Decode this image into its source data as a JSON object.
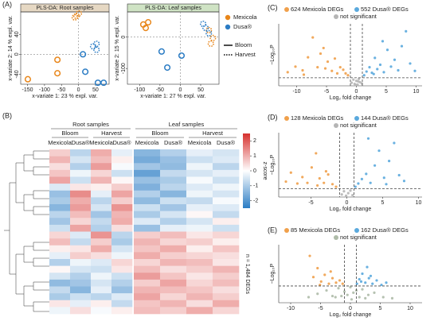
{
  "legend": {
    "cultivars": [
      {
        "name": "Mexicola",
        "color": "#e8861a"
      },
      {
        "name": "Dusa®",
        "color": "#2b7cc4"
      }
    ],
    "stages": [
      {
        "name": "Bloom",
        "dash": "none"
      },
      {
        "name": "Harvest",
        "dash": "1.6 1.4"
      }
    ]
  },
  "chart_data": [
    {
      "type": "scatter",
      "panel_label": "(A)",
      "title": "PLS-DA: Root samples",
      "title_color": "#e6d8c3",
      "xlabel": "x-variate 1: 23 % expl. var.",
      "ylabel": "x-variate 2: 14 % expl. var.",
      "xlim": [
        -170,
        90
      ],
      "ylim": [
        -60,
        85
      ],
      "xticks": [
        -150,
        -100,
        -50,
        0,
        50
      ],
      "yticks": [
        -40,
        0,
        40
      ],
      "zero_lines": true,
      "series": [
        {
          "cultivar": 0,
          "stage": 0,
          "x": [
            -149,
            -62,
            -62
          ],
          "y": [
            -50,
            -11,
            -38
          ]
        },
        {
          "cultivar": 0,
          "stage": 1,
          "x": [
            -6,
            1,
            -11
          ],
          "y": [
            77,
            82,
            74
          ]
        },
        {
          "cultivar": 1,
          "stage": 1,
          "x": [
            53,
            53,
            43
          ],
          "y": [
            21,
            9,
            16
          ]
        },
        {
          "cultivar": 1,
          "stage": 0,
          "x": [
            13,
            20,
            57,
            74
          ],
          "y": [
            0,
            -35,
            -57,
            -57
          ]
        }
      ]
    },
    {
      "type": "scatter",
      "title": "PLS-DA: Leaf samples",
      "title_color": "#cfe3c4",
      "xlabel": "x-variate 1: 27 % expl. var.",
      "ylabel": "x-variate 2: 15 % expl. var.",
      "xlim": [
        -130,
        95
      ],
      "ylim": [
        -150,
        80
      ],
      "xticks": [
        -100,
        -50,
        0,
        50
      ],
      "yticks": [
        -100,
        0
      ],
      "zero_lines": true,
      "series": [
        {
          "cultivar": 0,
          "stage": 0,
          "x": [
            -91,
            -79,
            -85
          ],
          "y": [
            40,
            47,
            29
          ]
        },
        {
          "cultivar": 0,
          "stage": 1,
          "x": [
            70,
            80,
            75
          ],
          "y": [
            22,
            -3,
            -21
          ]
        },
        {
          "cultivar": 1,
          "stage": 1,
          "x": [
            62,
            70,
            56
          ],
          "y": [
            29,
            12,
            42
          ]
        },
        {
          "cultivar": 1,
          "stage": 0,
          "x": [
            -46,
            -32,
            3
          ],
          "y": [
            -46,
            -97,
            -59
          ]
        }
      ]
    },
    {
      "type": "heatmap",
      "panel_label": "(B)",
      "zlabel": "z-score",
      "note": "n = 1,484 DEGs",
      "zlim": [
        -2.5,
        2.5
      ],
      "zticks": [
        2,
        1,
        0,
        -1,
        -2
      ],
      "low_color": "#2b7cc4",
      "mid_color": "#ffffff",
      "high_color": "#d6312e",
      "groups": [
        {
          "name": "Root samples",
          "stages": [
            {
              "name": "Bloom",
              "columns": [
                "Mexicola",
                "Dusa®"
              ]
            },
            {
              "name": "Harvest",
              "columns": [
                "Mexicola",
                "Dusa®"
              ]
            }
          ]
        },
        {
          "name": "Leaf samples",
          "stages": [
            {
              "name": "Bloom",
              "columns": [
                "Mexicola",
                "Dusa®"
              ]
            },
            {
              "name": "Harvest",
              "columns": [
                "Mexicola",
                "Dusa®"
              ]
            }
          ]
        }
      ],
      "values": [
        [
          0.6,
          -0.8,
          1.0,
          -0.3,
          -1.4,
          -0.9,
          -0.3,
          -0.5
        ],
        [
          0.9,
          -0.5,
          0.8,
          0.2,
          -1.6,
          -1.2,
          -0.6,
          -0.4
        ],
        [
          0.4,
          -0.9,
          1.2,
          -0.1,
          -1.1,
          -1.3,
          -0.2,
          -0.8
        ],
        [
          0.7,
          -0.2,
          0.5,
          -0.6,
          -1.8,
          -0.7,
          -0.5,
          -0.3
        ],
        [
          1.1,
          -0.6,
          0.9,
          0.1,
          -1.2,
          -1.0,
          -0.1,
          -0.6
        ],
        [
          -0.4,
          0.3,
          0.2,
          0.6,
          -1.5,
          -0.8,
          -0.4,
          -0.2
        ],
        [
          -1.2,
          1.4,
          -0.3,
          1.1,
          -0.9,
          -1.4,
          -0.2,
          -0.5
        ],
        [
          -1.0,
          1.0,
          -0.8,
          0.6,
          -1.3,
          -0.6,
          -0.7,
          -0.1
        ],
        [
          -1.4,
          1.2,
          -0.5,
          1.3,
          -0.6,
          -1.1,
          -0.3,
          -0.4
        ],
        [
          -0.8,
          0.8,
          -1.1,
          0.9,
          -1.0,
          -0.5,
          0.1,
          -0.7
        ],
        [
          -1.1,
          0.5,
          -0.7,
          1.0,
          -0.4,
          -0.9,
          -0.5,
          0.2
        ],
        [
          -0.6,
          1.1,
          -0.9,
          0.4,
          -1.2,
          -0.3,
          -0.2,
          -0.6
        ],
        [
          0.5,
          -0.4,
          1.3,
          -0.8,
          0.6,
          0.8,
          0.3,
          0.5
        ],
        [
          0.8,
          -0.7,
          0.6,
          -1.0,
          0.9,
          0.5,
          0.6,
          0.2
        ],
        [
          0.2,
          0.3,
          1.0,
          -0.5,
          0.7,
          1.0,
          0.2,
          0.7
        ],
        [
          -0.3,
          0.6,
          0.4,
          -0.2,
          1.0,
          0.6,
          0.5,
          0.4
        ],
        [
          -0.9,
          -0.2,
          -0.4,
          0.5,
          0.5,
          0.9,
          0.8,
          0.3
        ],
        [
          0.1,
          -0.5,
          -0.6,
          0.3,
          0.8,
          0.4,
          0.6,
          0.9
        ],
        [
          -0.5,
          -0.9,
          -0.2,
          -0.6,
          1.2,
          0.7,
          0.3,
          0.6
        ],
        [
          -1.3,
          -1.1,
          -0.5,
          -0.9,
          0.6,
          1.1,
          0.5,
          0.8
        ],
        [
          -0.7,
          -1.4,
          -0.3,
          -1.2,
          0.9,
          0.8,
          0.7,
          0.4
        ],
        [
          -1.0,
          -0.6,
          -0.8,
          -0.4,
          1.1,
          0.5,
          0.9,
          0.6
        ],
        [
          0.3,
          -0.3,
          0.2,
          -0.7,
          0.7,
          0.9,
          0.4,
          1.0
        ],
        [
          -0.2,
          0.4,
          -0.1,
          0.2,
          0.8,
          0.6,
          1.0,
          0.5
        ]
      ]
    },
    {
      "type": "volcano",
      "panel_label": "(C)",
      "xlabel": "Log₂ fold change",
      "ylabel": "−Log₁₀P",
      "xlim": [
        -13,
        11
      ],
      "ylim": [
        0,
        10
      ],
      "xticks": [
        -10,
        -5,
        0,
        5,
        10
      ],
      "threshold_x": [
        -1,
        1
      ],
      "threshold_y": 1.3,
      "series": [
        {
          "name": "624 Mexicola DEGs",
          "color": "#f0a04b",
          "x": [
            -11.5,
            -10.2,
            -9,
            -8.1,
            -7.3,
            -6.5,
            -6,
            -5.2,
            -4.8,
            -4.1,
            -3.6,
            -3.2,
            -2.7,
            -2.2,
            -1.8,
            -1.4,
            -8.8,
            -5.5
          ],
          "y": [
            2.2,
            3.1,
            2.5,
            4.6,
            7.8,
            3.0,
            5.2,
            2.8,
            3.9,
            2.4,
            4.4,
            2.0,
            3.0,
            2.6,
            2.0,
            1.7,
            1.8,
            6.1
          ]
        },
        {
          "name": "552 Dusa® DEGs",
          "color": "#5aa9dd",
          "x": [
            1.3,
            1.7,
            2.2,
            2.6,
            3.1,
            3.5,
            4.0,
            4.6,
            5.2,
            5.8,
            6.4,
            7.0,
            7.6,
            8.3,
            9.0,
            9.8,
            4.4,
            2.9
          ],
          "y": [
            1.7,
            2.3,
            3.0,
            2.1,
            4.5,
            2.7,
            3.4,
            2.2,
            5.8,
            3.1,
            4.2,
            2.5,
            6.4,
            8.8,
            3.6,
            2.4,
            7.2,
            1.9
          ]
        },
        {
          "name": "not significant",
          "color": "#b5b5b5",
          "x": [
            -0.8,
            -0.5,
            -0.3,
            0,
            0.2,
            0.4,
            0.6,
            0.9,
            -0.1,
            0.3
          ],
          "y": [
            0.5,
            1.0,
            0.3,
            0.8,
            0.2,
            1.1,
            0.6,
            0.4,
            0.15,
            0.7
          ]
        }
      ]
    },
    {
      "type": "volcano",
      "panel_label": "(D)",
      "xlabel": "Log₂ fold change",
      "ylabel": "−Log₁₀P",
      "xlim": [
        -9.5,
        10.5
      ],
      "ylim": [
        0,
        10
      ],
      "xticks": [
        -5,
        0,
        5,
        10
      ],
      "threshold_x": [
        -1,
        1
      ],
      "threshold_y": 1.3,
      "series": [
        {
          "name": "128 Mexicola DEGs",
          "color": "#f0a04b",
          "x": [
            -8.5,
            -7.8,
            -6.2,
            -5.5,
            -4.9,
            -4.3,
            -3.8,
            -3.2,
            -2.6,
            -2.0,
            -1.5,
            -6.9,
            -4.1,
            -2.9
          ],
          "y": [
            2.4,
            3.8,
            3.1,
            2.2,
            4.6,
            6.8,
            2.9,
            2.2,
            3.5,
            2.0,
            1.6,
            2.1,
            1.8,
            4.0
          ]
        },
        {
          "name": "144 Dusa® DEGs",
          "color": "#5aa9dd",
          "x": [
            1.2,
            1.6,
            2.1,
            2.7,
            3.3,
            3.9,
            4.5,
            5.2,
            5.9,
            6.6,
            7.3,
            8.0,
            3.0,
            5.5
          ],
          "y": [
            1.6,
            2.1,
            2.8,
            3.6,
            2.2,
            4.9,
            7.2,
            3.0,
            5.6,
            8.4,
            3.4,
            2.5,
            9.1,
            2.0
          ]
        },
        {
          "name": "not significant",
          "color": "#b5b5b5",
          "x": [
            -0.7,
            -0.4,
            -0.1,
            0.2,
            0.5,
            0.8
          ],
          "y": [
            0.4,
            0.9,
            0.2,
            0.6,
            1.0,
            0.3
          ]
        }
      ]
    },
    {
      "type": "volcano",
      "panel_label": "(E)",
      "xlabel": "Log₂ fold change",
      "ylabel": "−Log₁₀P",
      "xlim": [
        -12,
        12
      ],
      "ylim": [
        -0.2,
        5
      ],
      "xticks": [
        -10,
        -5,
        0,
        5,
        10
      ],
      "threshold_x": [
        -1,
        1
      ],
      "threshold_y": 1.3,
      "series": [
        {
          "name": "85 Mexicola DEGs",
          "color": "#f0a04b",
          "x": [
            -6.8,
            -6.2,
            -5.5,
            -4.9,
            -4.3,
            -3.6,
            -3.0,
            -2.4,
            -1.8,
            -1.3,
            -5.1,
            -3.3
          ],
          "y": [
            4.0,
            2.1,
            2.9,
            1.7,
            2.3,
            1.5,
            2.0,
            1.6,
            1.8,
            1.5,
            1.4,
            2.6
          ]
        },
        {
          "name": "162 Dusa® DEGs",
          "color": "#5aa9dd",
          "x": [
            1.1,
            1.5,
            2.0,
            2.5,
            3.1,
            3.7,
            4.4,
            5.2,
            6.0,
            2.8,
            1.8,
            3.4
          ],
          "y": [
            1.5,
            1.9,
            2.4,
            1.6,
            2.0,
            1.5,
            1.8,
            1.4,
            1.6,
            3.0,
            1.7,
            2.2
          ]
        },
        {
          "name": "not significant",
          "color": "#aebba8",
          "x": [
            -7,
            -5.5,
            -4,
            -3,
            -2,
            -1,
            -0.5,
            0,
            0.5,
            1,
            2,
            3,
            4,
            5.5,
            7,
            -2.5,
            2.5,
            -1.5,
            1.5,
            0.2
          ],
          "y": [
            0.3,
            0.6,
            0.9,
            0.4,
            1.1,
            0.8,
            0.5,
            1.2,
            0.7,
            0.9,
            1.0,
            0.5,
            0.7,
            0.3,
            0.2,
            0.3,
            0.2,
            0.4,
            0.3,
            0.1
          ]
        }
      ]
    }
  ]
}
